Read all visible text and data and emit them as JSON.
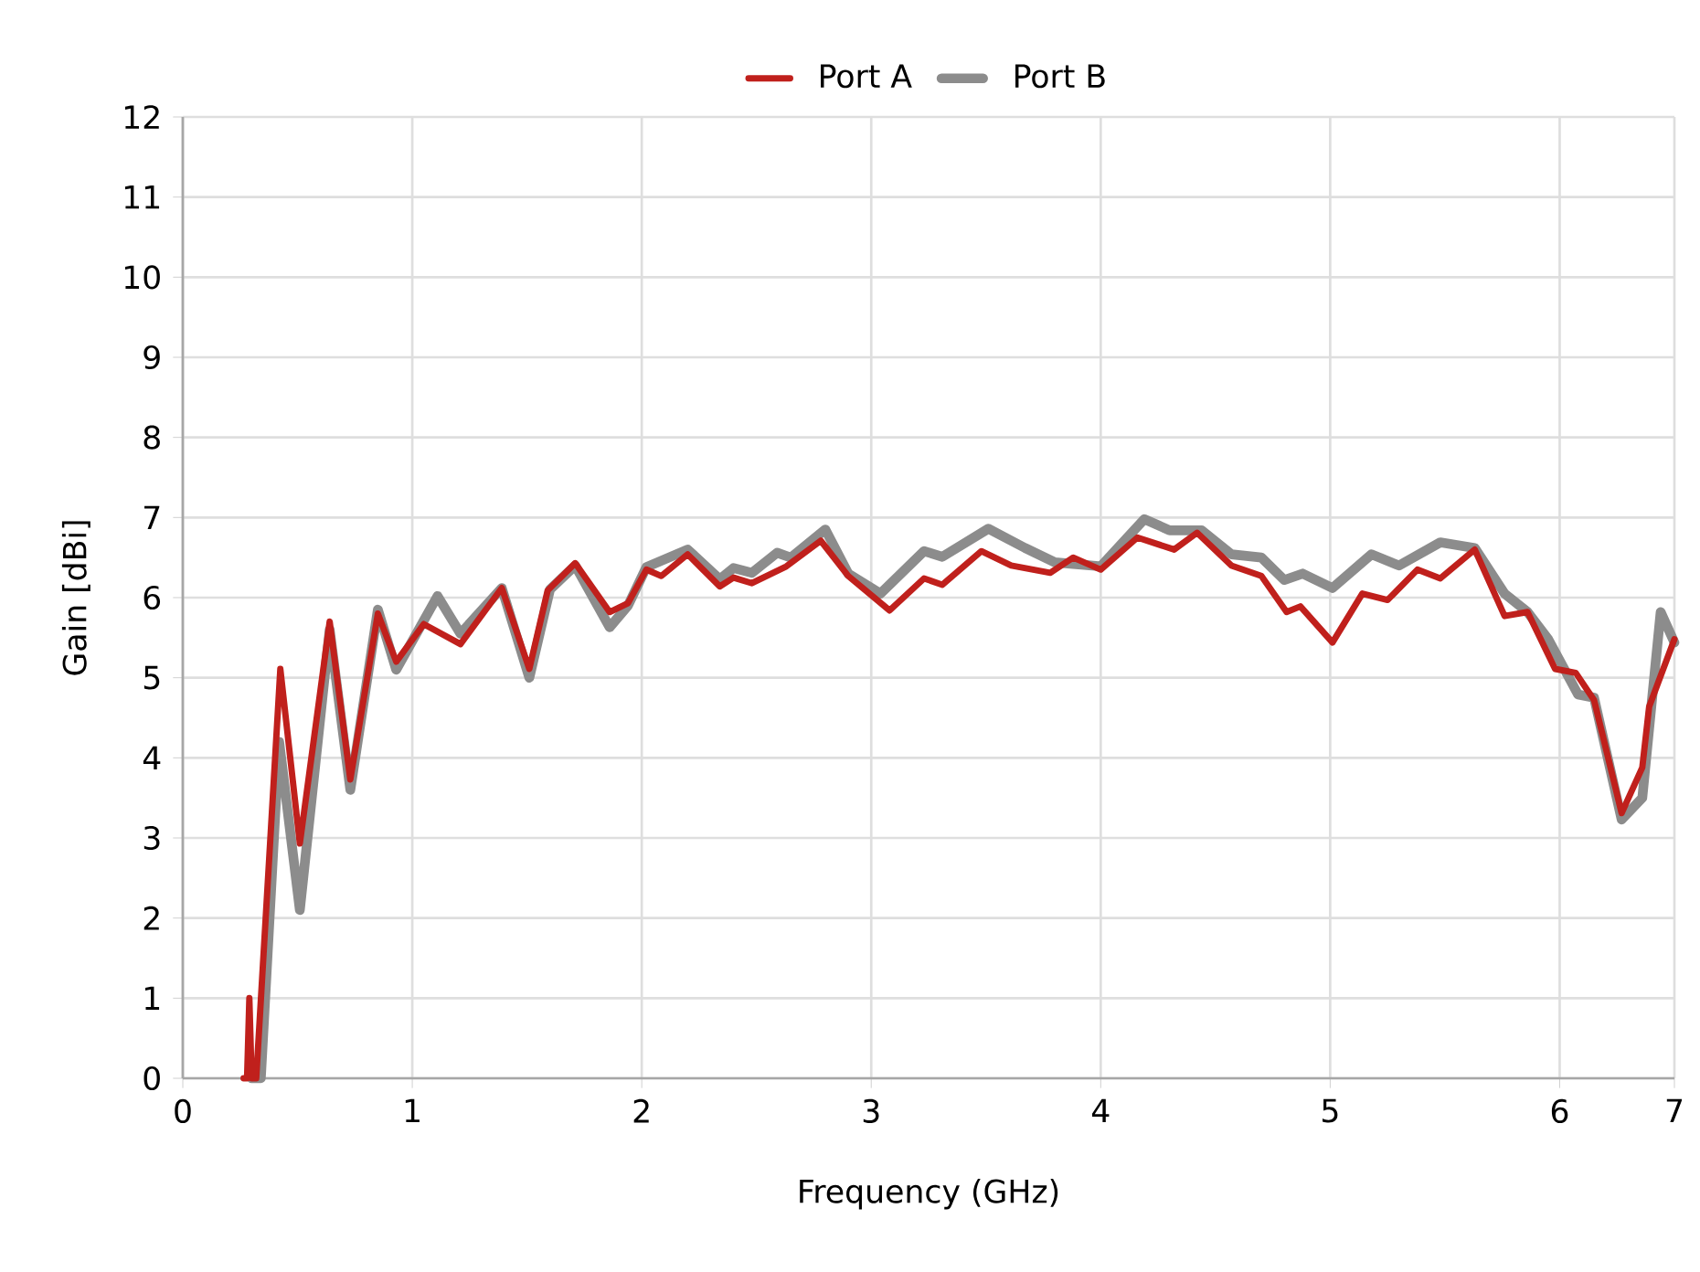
{
  "chart_data": {
    "type": "line",
    "xlabel": "Frequency (GHz)",
    "ylabel": "Gain [dBi]",
    "xlim": [
      0,
      6.5
    ],
    "xticks": [
      0,
      1,
      2,
      3,
      4,
      5,
      6,
      {
        "value": 6.5,
        "label": "7"
      }
    ],
    "ylim": [
      0,
      12
    ],
    "yticks": [
      0,
      1,
      2,
      3,
      4,
      5,
      6,
      7,
      8,
      9,
      10,
      11,
      12
    ],
    "grid": true,
    "legend": "top",
    "marker": "none",
    "line_style": "solid",
    "series": [
      {
        "name": "Port B",
        "color": "#8c8c8c",
        "x": [
          0.3,
          0.34,
          0.42,
          0.51,
          0.64,
          0.73,
          0.85,
          0.93,
          1.11,
          1.21,
          1.39,
          1.51,
          1.6,
          1.71,
          1.86,
          1.94,
          2.02,
          2.2,
          2.34,
          2.4,
          2.48,
          2.59,
          2.65,
          2.8,
          2.9,
          3.04,
          3.23,
          3.31,
          3.51,
          3.67,
          3.8,
          3.88,
          4.0,
          4.19,
          4.3,
          4.44,
          4.57,
          4.7,
          4.8,
          4.88,
          5.01,
          5.18,
          5.3,
          5.48,
          5.63,
          5.76,
          5.86,
          5.95,
          6.08,
          6.15,
          6.27,
          6.36,
          6.44,
          6.5
        ],
        "values": [
          0,
          0,
          4.2,
          2.1,
          5.6,
          3.6,
          5.85,
          5.1,
          6.02,
          5.55,
          6.12,
          5.0,
          6.1,
          6.4,
          5.63,
          5.9,
          6.38,
          6.6,
          6.23,
          6.37,
          6.31,
          6.56,
          6.5,
          6.85,
          6.3,
          6.05,
          6.58,
          6.51,
          6.86,
          6.62,
          6.44,
          6.42,
          6.39,
          6.98,
          6.84,
          6.84,
          6.54,
          6.5,
          6.22,
          6.3,
          6.12,
          6.54,
          6.4,
          6.69,
          6.62,
          6.05,
          5.82,
          5.48,
          4.79,
          4.75,
          3.23,
          3.5,
          5.82,
          5.44
        ]
      },
      {
        "name": "Port A",
        "color": "#c0201c",
        "x": [
          0.265,
          0.28,
          0.29,
          0.3,
          0.32,
          0.425,
          0.51,
          0.64,
          0.73,
          0.85,
          0.93,
          1.05,
          1.21,
          1.39,
          1.51,
          1.59,
          1.71,
          1.86,
          1.94,
          2.02,
          2.085,
          2.2,
          2.34,
          2.4,
          2.48,
          2.63,
          2.78,
          2.9,
          3.08,
          3.23,
          3.31,
          3.48,
          3.61,
          3.78,
          3.88,
          4.0,
          4.16,
          4.32,
          4.42,
          4.57,
          4.7,
          4.81,
          4.87,
          5.01,
          5.14,
          5.25,
          5.38,
          5.48,
          5.63,
          5.76,
          5.86,
          5.98,
          6.07,
          6.15,
          6.27,
          6.36,
          6.39,
          6.5
        ],
        "values": [
          0,
          0,
          1.0,
          0,
          0,
          5.11,
          2.93,
          5.7,
          3.73,
          5.8,
          5.2,
          5.67,
          5.42,
          6.12,
          5.11,
          6.09,
          6.43,
          5.82,
          5.93,
          6.35,
          6.27,
          6.54,
          6.14,
          6.25,
          6.18,
          6.39,
          6.71,
          6.27,
          5.84,
          6.24,
          6.16,
          6.58,
          6.4,
          6.31,
          6.5,
          6.35,
          6.75,
          6.6,
          6.81,
          6.4,
          6.27,
          5.82,
          5.89,
          5.44,
          6.05,
          5.97,
          6.35,
          6.24,
          6.6,
          5.77,
          5.82,
          5.11,
          5.06,
          4.72,
          3.31,
          3.88,
          4.64,
          5.48
        ]
      }
    ]
  }
}
